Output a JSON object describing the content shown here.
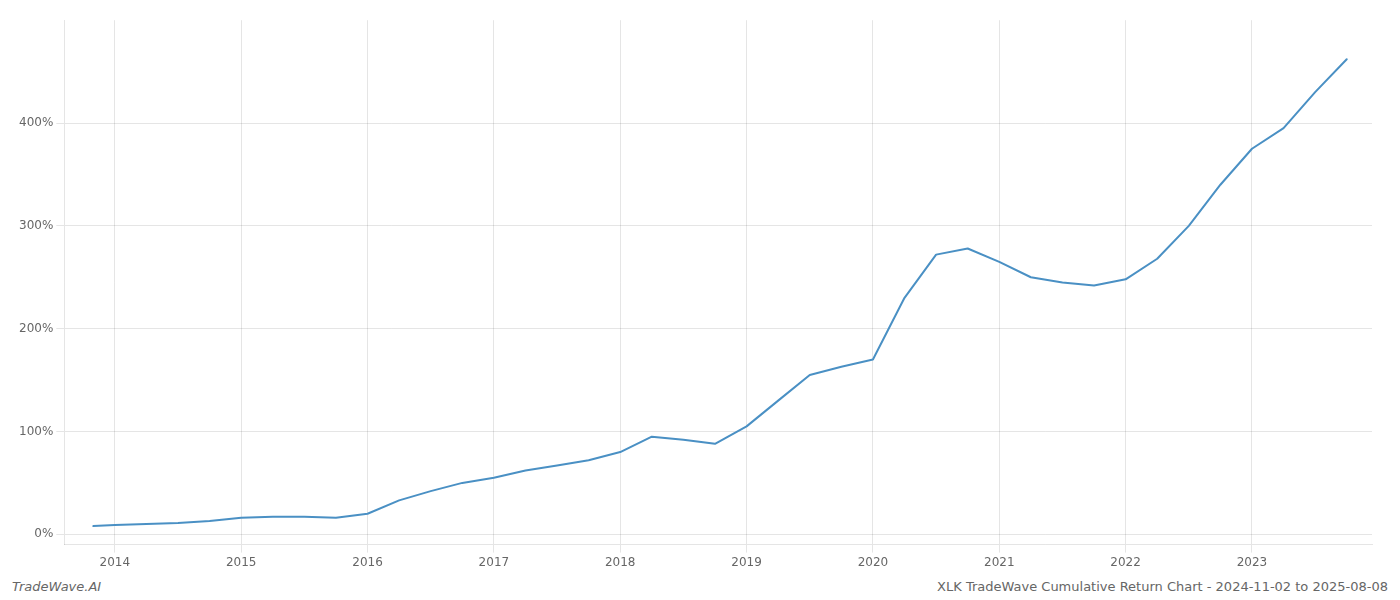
{
  "chart_data": {
    "type": "line",
    "annotations": [
      "TradeWave.AI",
      "XLK TradeWave Cumulative Return Chart - 2024-11-02 to 2025-08-08"
    ],
    "x": [
      2013.83,
      2014.0,
      2014.25,
      2014.5,
      2014.75,
      2015.0,
      2015.25,
      2015.5,
      2015.75,
      2016.0,
      2016.25,
      2016.5,
      2016.75,
      2017.0,
      2017.25,
      2017.5,
      2017.75,
      2018.0,
      2018.25,
      2018.5,
      2018.75,
      2019.0,
      2019.25,
      2019.5,
      2019.75,
      2020.0,
      2020.25,
      2020.5,
      2020.75,
      2021.0,
      2021.25,
      2021.5,
      2021.75,
      2022.0,
      2022.25,
      2022.5,
      2022.75,
      2023.0,
      2023.25,
      2023.5,
      2023.75
    ],
    "values": [
      8,
      9,
      10,
      11,
      13,
      16,
      17,
      17,
      16,
      20,
      33,
      42,
      50,
      55,
      62,
      67,
      72,
      80,
      95,
      92,
      88,
      105,
      130,
      155,
      163,
      170,
      230,
      272,
      278,
      265,
      250,
      245,
      242,
      248,
      268,
      300,
      340,
      375,
      395,
      430,
      462
    ],
    "color": "#4a90c4",
    "xlim": [
      2013.6,
      2023.95
    ],
    "xticks": [
      2014,
      2015,
      2016,
      2017,
      2018,
      2019,
      2020,
      2021,
      2022,
      2023
    ],
    "ylim": [
      -10,
      500
    ],
    "yticks": [
      {
        "value": 0,
        "label": "0%"
      },
      {
        "value": 100,
        "label": "100%"
      },
      {
        "value": 200,
        "label": "200%"
      },
      {
        "value": 300,
        "label": "300%"
      },
      {
        "value": 400,
        "label": "400%"
      }
    ],
    "grid": true
  }
}
